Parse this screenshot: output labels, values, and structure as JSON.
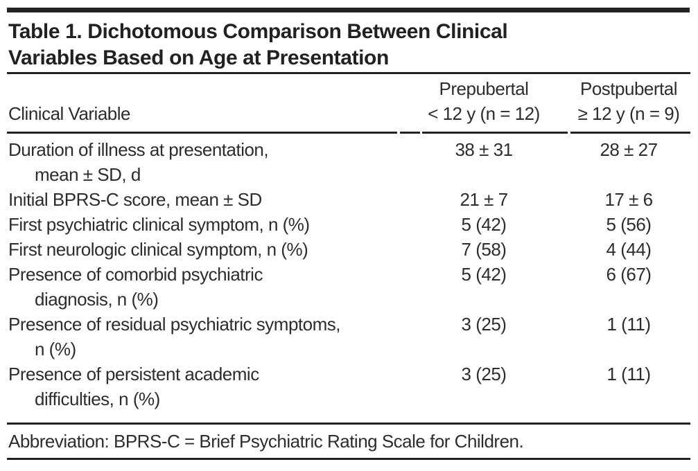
{
  "table": {
    "title_line1": "Table 1. Dichotomous Comparison Between Clinical",
    "title_line2": "Variables Based on Age at Presentation",
    "columns": {
      "stub": "Clinical Variable",
      "prepubertal_line1": "Prepubertal",
      "prepubertal_line2": "< 12 y (n = 12)",
      "postpubertal_line1": "Postpubertal",
      "postpubertal_line2": "≥ 12 y (n = 9)"
    },
    "rows": [
      {
        "label1": "Duration of illness at presentation,",
        "label2": "mean ± SD, d",
        "prepubertal": "38 ± 31",
        "postpubertal": "28 ± 27"
      },
      {
        "label1": "Initial BPRS-C score, mean ± SD",
        "label2": "",
        "prepubertal": "21 ± 7",
        "postpubertal": "17 ± 6"
      },
      {
        "label1": "First psychiatric clinical symptom, n (%)",
        "label2": "",
        "prepubertal": "5 (42)",
        "postpubertal": "5 (56)"
      },
      {
        "label1": "First neurologic clinical symptom, n (%)",
        "label2": "",
        "prepubertal": "7 (58)",
        "postpubertal": "4 (44)"
      },
      {
        "label1": "Presence of comorbid psychiatric",
        "label2": "diagnosis, n (%)",
        "prepubertal": "5 (42)",
        "postpubertal": "6 (67)"
      },
      {
        "label1": "Presence of residual psychiatric symptoms,",
        "label2": "n (%)",
        "prepubertal": "3 (25)",
        "postpubertal": "1 (11)"
      },
      {
        "label1": "Presence of persistent academic",
        "label2": "difficulties, n (%)",
        "prepubertal": "3 (25)",
        "postpubertal": "1 (11)"
      }
    ],
    "footnote": "Abbreviation: BPRS-C = Brief Psychiatric Rating Scale for Children."
  }
}
